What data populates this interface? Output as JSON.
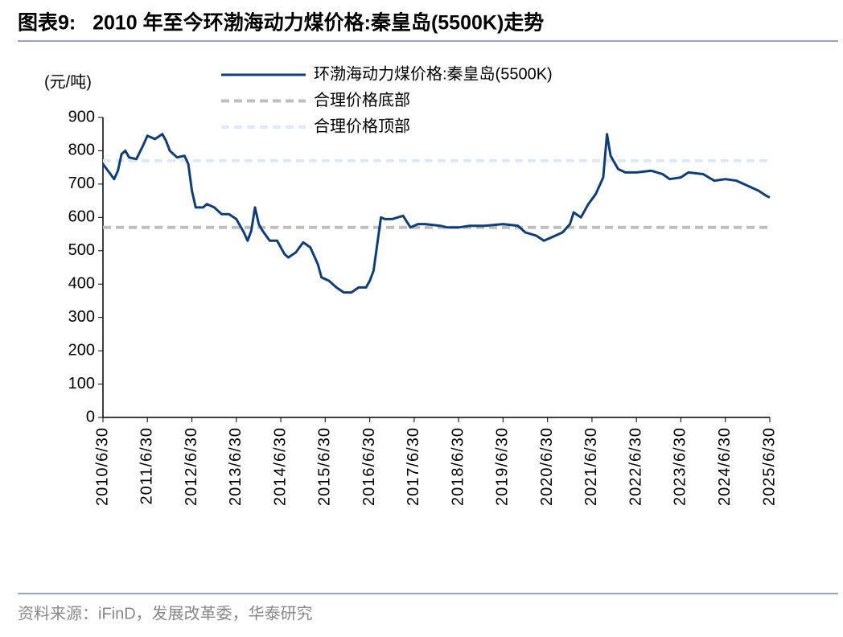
{
  "chart_data": {
    "type": "line",
    "title": "图表9:   2010 年至今环渤海动力煤价格:秦皇岛(5500K)走势",
    "y_label": "(元/吨)",
    "source": "资料来源：iFinD，发展改革委，华泰研究",
    "xlim": [
      "2010/6/30",
      "2025/6/30"
    ],
    "xticks": [
      "2010/6/30",
      "2011/6/30",
      "2012/6/30",
      "2013/6/30",
      "2014/6/30",
      "2015/6/30",
      "2016/6/30",
      "2017/6/30",
      "2018/6/30",
      "2019/6/30",
      "2020/6/30",
      "2021/6/30",
      "2022/6/30",
      "2023/6/30",
      "2024/6/30",
      "2025/6/30"
    ],
    "ylim": [
      0,
      900
    ],
    "yticks": [
      0,
      100,
      200,
      300,
      400,
      500,
      600,
      700,
      800,
      900
    ],
    "x": [
      "2010/6/30",
      "2010/8/31",
      "2010/9/30",
      "2010/10/31",
      "2010/11/30",
      "2010/12/31",
      "2011/1/31",
      "2011/3/31",
      "2011/5/31",
      "2011/6/30",
      "2011/8/31",
      "2011/10/31",
      "2011/11/30",
      "2011/12/31",
      "2012/2/29",
      "2012/4/30",
      "2012/5/31",
      "2012/6/30",
      "2012/7/31",
      "2012/9/30",
      "2012/10/31",
      "2012/12/31",
      "2013/2/28",
      "2013/4/30",
      "2013/6/30",
      "2013/8/31",
      "2013/9/30",
      "2013/10/31",
      "2013/11/30",
      "2013/12/31",
      "2014/1/31",
      "2014/3/31",
      "2014/5/31",
      "2014/7/31",
      "2014/8/31",
      "2014/10/31",
      "2014/12/31",
      "2015/2/28",
      "2015/4/30",
      "2015/5/31",
      "2015/7/31",
      "2015/9/30",
      "2015/11/30",
      "2016/1/31",
      "2016/3/31",
      "2016/5/31",
      "2016/6/30",
      "2016/7/31",
      "2016/8/31",
      "2016/9/30",
      "2016/10/31",
      "2016/12/31",
      "2017/3/31",
      "2017/5/31",
      "2017/7/31",
      "2017/9/30",
      "2018/1/31",
      "2018/3/31",
      "2018/6/30",
      "2018/9/30",
      "2019/1/31",
      "2019/6/30",
      "2019/10/31",
      "2019/12/31",
      "2020/3/31",
      "2020/5/31",
      "2020/7/31",
      "2020/10/31",
      "2020/12/31",
      "2021/1/31",
      "2021/3/31",
      "2021/5/31",
      "2021/7/31",
      "2021/9/30",
      "2021/10/31",
      "2021/11/30",
      "2022/1/31",
      "2022/3/31",
      "2022/6/30",
      "2022/10/31",
      "2023/1/31",
      "2023/3/31",
      "2023/6/30",
      "2023/8/31",
      "2023/12/31",
      "2024/3/31",
      "2024/6/30",
      "2024/9/30",
      "2024/12/31",
      "2025/3/31",
      "2025/5/31",
      "2025/6/30"
    ],
    "series": [
      {
        "name": "环渤海动力煤价格:秦皇岛(5500K)",
        "color": "#0e3e7a",
        "values": [
          760,
          730,
          715,
          740,
          790,
          800,
          780,
          775,
          820,
          845,
          835,
          850,
          830,
          800,
          780,
          785,
          760,
          680,
          630,
          630,
          640,
          630,
          610,
          610,
          595,
          555,
          530,
          560,
          630,
          580,
          560,
          530,
          530,
          490,
          480,
          495,
          525,
          510,
          460,
          420,
          410,
          390,
          375,
          375,
          390,
          390,
          410,
          440,
          520,
          600,
          595,
          595,
          605,
          570,
          580,
          580,
          575,
          570,
          570,
          575,
          575,
          580,
          575,
          555,
          545,
          530,
          540,
          555,
          580,
          615,
          600,
          640,
          670,
          720,
          850,
          785,
          745,
          735,
          735,
          740,
          730,
          715,
          720,
          735,
          730,
          710,
          715,
          710,
          695,
          680,
          665,
          660
        ]
      },
      {
        "name": "合理价格底部",
        "color": "#bfbfbf",
        "dash": "10,6",
        "value": 570
      },
      {
        "name": "合理价格顶部",
        "color": "#dce9f7",
        "dash": "10,6",
        "value": 770
      }
    ]
  }
}
